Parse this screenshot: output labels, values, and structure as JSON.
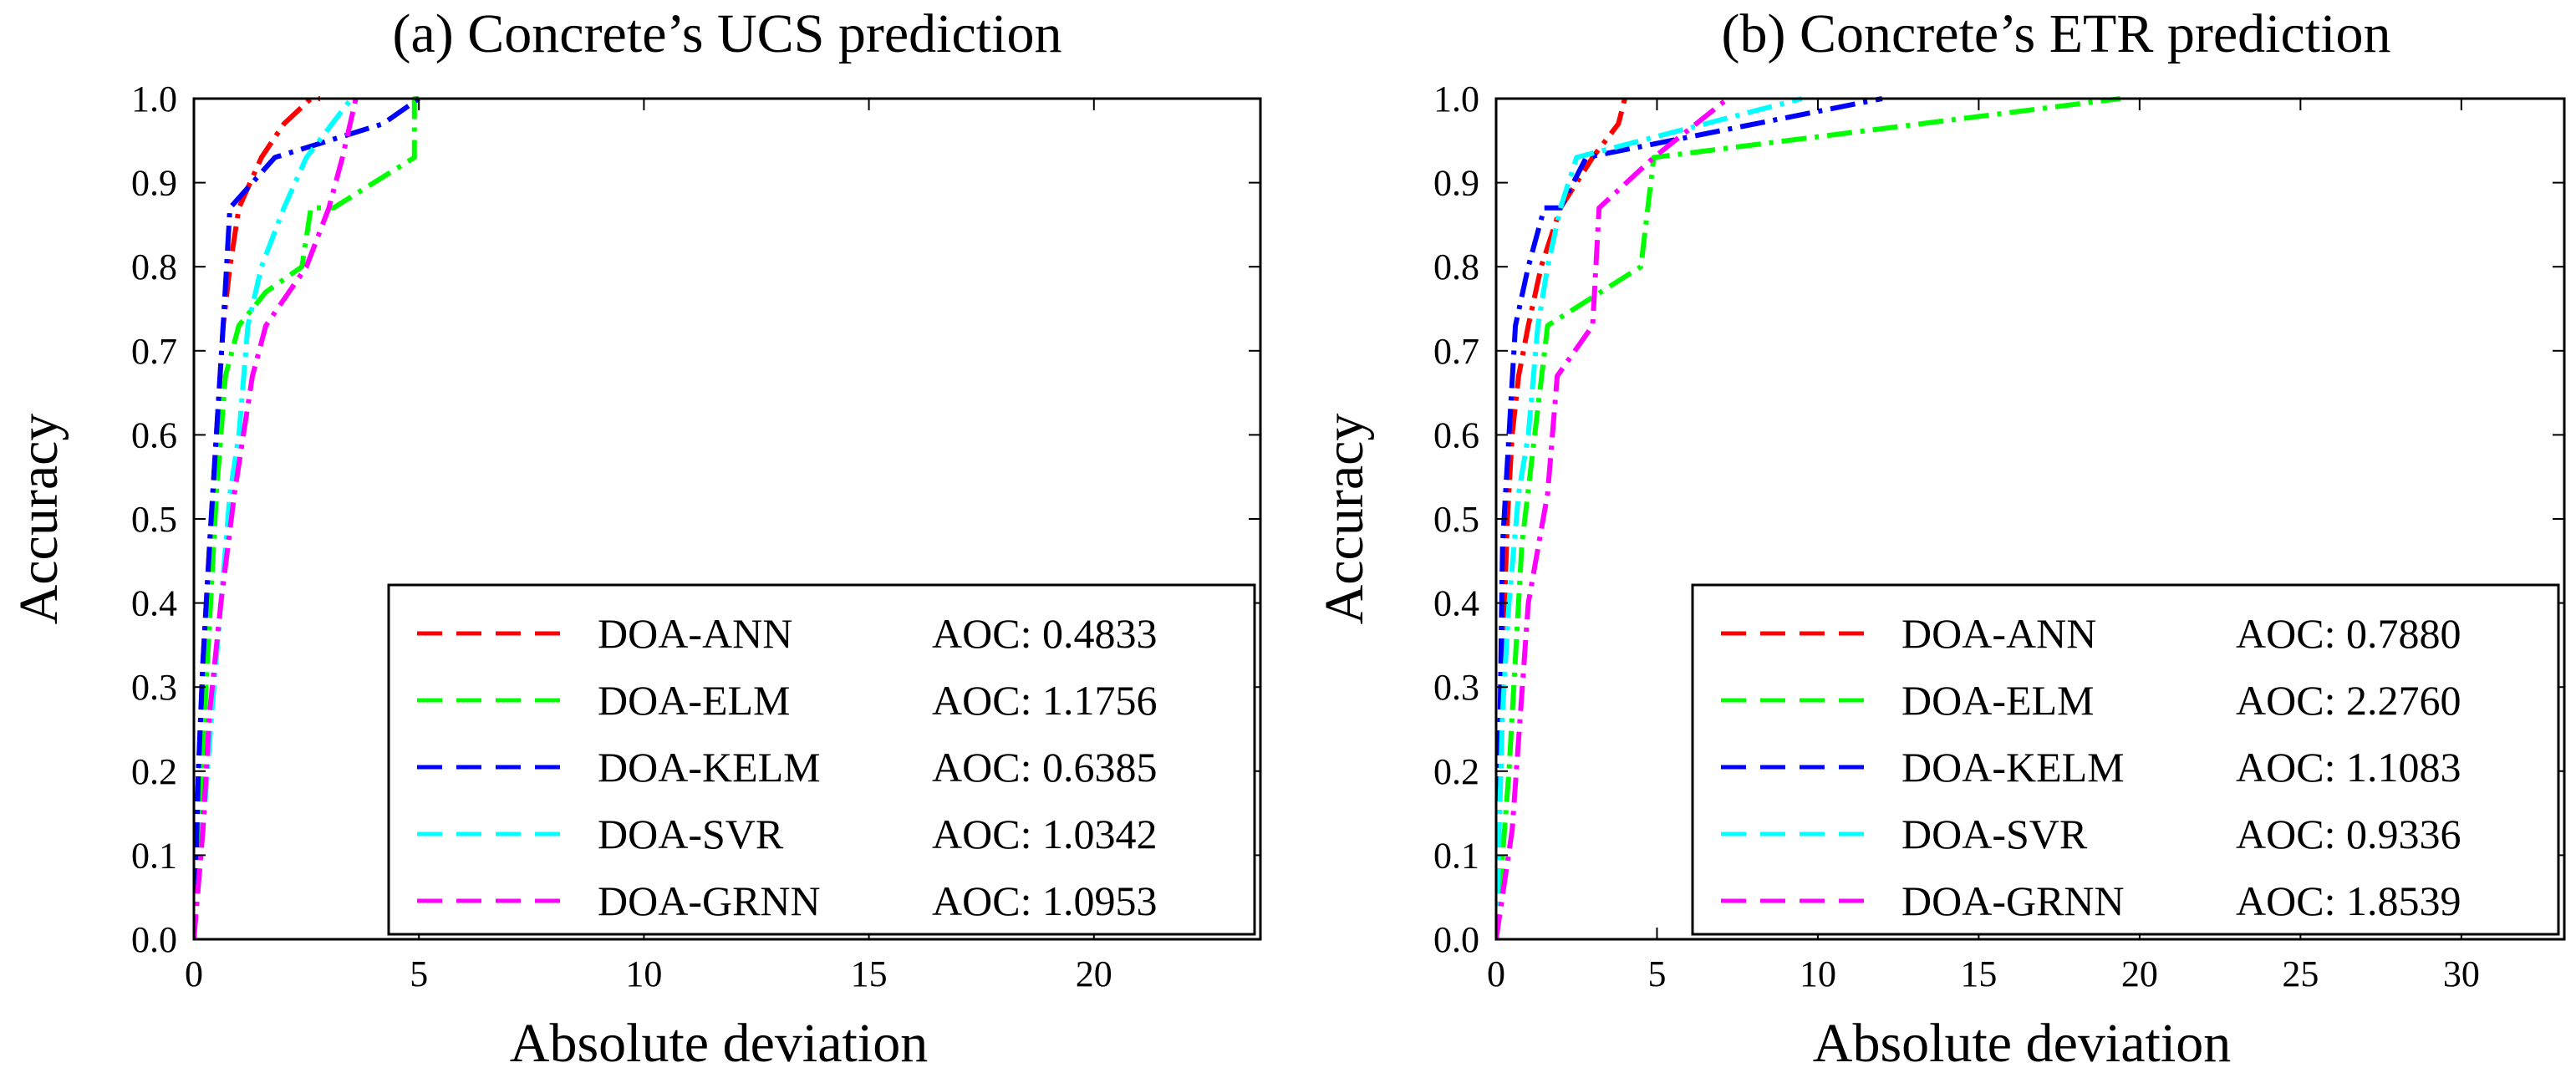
{
  "chart_data": [
    {
      "type": "line",
      "title": "(a) Concrete’s UCS prediction",
      "xlabel": "Absolute deviation",
      "ylabel": "Accuracy",
      "xlim": [
        0,
        23.7
      ],
      "ylim": [
        0,
        1
      ],
      "xticks": [
        "0",
        "5",
        "10",
        "15",
        "20"
      ],
      "yticks": [
        "0.0",
        "0.1",
        "0.2",
        "0.3",
        "0.4",
        "0.5",
        "0.6",
        "0.7",
        "0.8",
        "0.9",
        "1.0"
      ],
      "legend_position": "bottom-right",
      "series": [
        {
          "name": "DOA-ANN",
          "aoc": "AOC: 0.4833",
          "color": "#ff0000",
          "x": [
            0,
            0.1,
            0.2,
            0.35,
            0.5,
            0.65,
            0.8,
            1.0,
            1.5,
            2.0,
            2.6,
            2.8
          ],
          "y": [
            0,
            0.2,
            0.33,
            0.47,
            0.6,
            0.73,
            0.8,
            0.87,
            0.93,
            0.97,
            1.0,
            1.0
          ]
        },
        {
          "name": "DOA-ELM",
          "aoc": "AOC: 1.1756",
          "color": "#00ff00",
          "x": [
            0,
            0.1,
            0.3,
            0.5,
            0.7,
            1.0,
            1.6,
            2.4,
            2.6,
            3.1,
            4.9,
            4.9,
            5.0
          ],
          "y": [
            0,
            0.13,
            0.33,
            0.53,
            0.67,
            0.73,
            0.77,
            0.8,
            0.87,
            0.87,
            0.93,
            1.0,
            1.0
          ]
        },
        {
          "name": "DOA-KELM",
          "aoc": "AOC: 0.6385",
          "color": "#0000ff",
          "x": [
            0,
            0.1,
            0.2,
            0.35,
            0.5,
            0.65,
            0.8,
            1.8,
            3.0,
            4.2,
            5.0
          ],
          "y": [
            0,
            0.2,
            0.33,
            0.47,
            0.6,
            0.73,
            0.87,
            0.93,
            0.95,
            0.97,
            1.0
          ]
        },
        {
          "name": "DOA-SVR",
          "aoc": "AOC: 1.0342",
          "color": "#00ffff",
          "x": [
            0,
            0.2,
            0.4,
            0.6,
            0.8,
            1.0,
            1.2,
            1.5,
            2.0,
            2.5,
            3.5
          ],
          "y": [
            0,
            0.13,
            0.27,
            0.4,
            0.53,
            0.6,
            0.73,
            0.8,
            0.87,
            0.93,
            1.0
          ]
        },
        {
          "name": "DOA-GRNN",
          "aoc": "AOC: 1.0953",
          "color": "#ff00ff",
          "x": [
            0,
            0.2,
            0.35,
            0.6,
            0.9,
            1.1,
            1.3,
            1.6,
            2.5,
            3.0,
            3.3,
            3.6
          ],
          "y": [
            0,
            0.13,
            0.27,
            0.4,
            0.53,
            0.6,
            0.67,
            0.73,
            0.8,
            0.87,
            0.93,
            1.0
          ]
        }
      ]
    },
    {
      "type": "line",
      "title": "(b) Concrete’s ETR prediction",
      "xlabel": "Absolute deviation",
      "ylabel": "Accuracy",
      "xlim": [
        0,
        33.2
      ],
      "ylim": [
        0,
        1
      ],
      "xticks": [
        "0",
        "5",
        "10",
        "15",
        "20",
        "25",
        "30"
      ],
      "yticks": [
        "0.0",
        "0.1",
        "0.2",
        "0.3",
        "0.4",
        "0.5",
        "0.6",
        "0.7",
        "0.8",
        "0.9",
        "1.0"
      ],
      "legend_position": "bottom-right",
      "series": [
        {
          "name": "DOA-ANN",
          "aoc": "AOC: 0.7880",
          "color": "#ff0000",
          "x": [
            0,
            0.2,
            0.35,
            0.5,
            0.7,
            1.0,
            1.4,
            2.0,
            3.0,
            3.8,
            4.0
          ],
          "y": [
            0,
            0.33,
            0.5,
            0.6,
            0.67,
            0.73,
            0.8,
            0.87,
            0.93,
            0.97,
            1.0
          ]
        },
        {
          "name": "DOA-ELM",
          "aoc": "AOC: 2.2760",
          "color": "#00ff00",
          "x": [
            0,
            0.4,
            0.8,
            1.2,
            1.6,
            4.5,
            4.9,
            19.4
          ],
          "y": [
            0,
            0.2,
            0.47,
            0.6,
            0.73,
            0.8,
            0.93,
            1.0
          ]
        },
        {
          "name": "DOA-KELM",
          "aoc": "AOC: 1.1083",
          "color": "#0000ff",
          "x": [
            0,
            0.1,
            0.2,
            0.4,
            0.6,
            1.0,
            1.5,
            2.0,
            2.8,
            12.0
          ],
          "y": [
            0,
            0.2,
            0.47,
            0.6,
            0.73,
            0.8,
            0.87,
            0.87,
            0.93,
            1.0
          ]
        },
        {
          "name": "DOA-SVR",
          "aoc": "AOC: 0.9336",
          "color": "#00ffff",
          "x": [
            0,
            0.2,
            0.4,
            0.7,
            1.0,
            1.3,
            1.6,
            2.0,
            2.5,
            9.5
          ],
          "y": [
            0,
            0.27,
            0.4,
            0.53,
            0.6,
            0.73,
            0.8,
            0.87,
            0.93,
            1.0
          ]
        },
        {
          "name": "DOA-GRNN",
          "aoc": "AOC: 1.8539",
          "color": "#ff00ff",
          "x": [
            0,
            0.5,
            1.0,
            1.6,
            1.9,
            3.0,
            3.2,
            4.9,
            7.2
          ],
          "y": [
            0,
            0.13,
            0.4,
            0.53,
            0.67,
            0.73,
            0.87,
            0.93,
            1.0
          ]
        }
      ]
    }
  ]
}
